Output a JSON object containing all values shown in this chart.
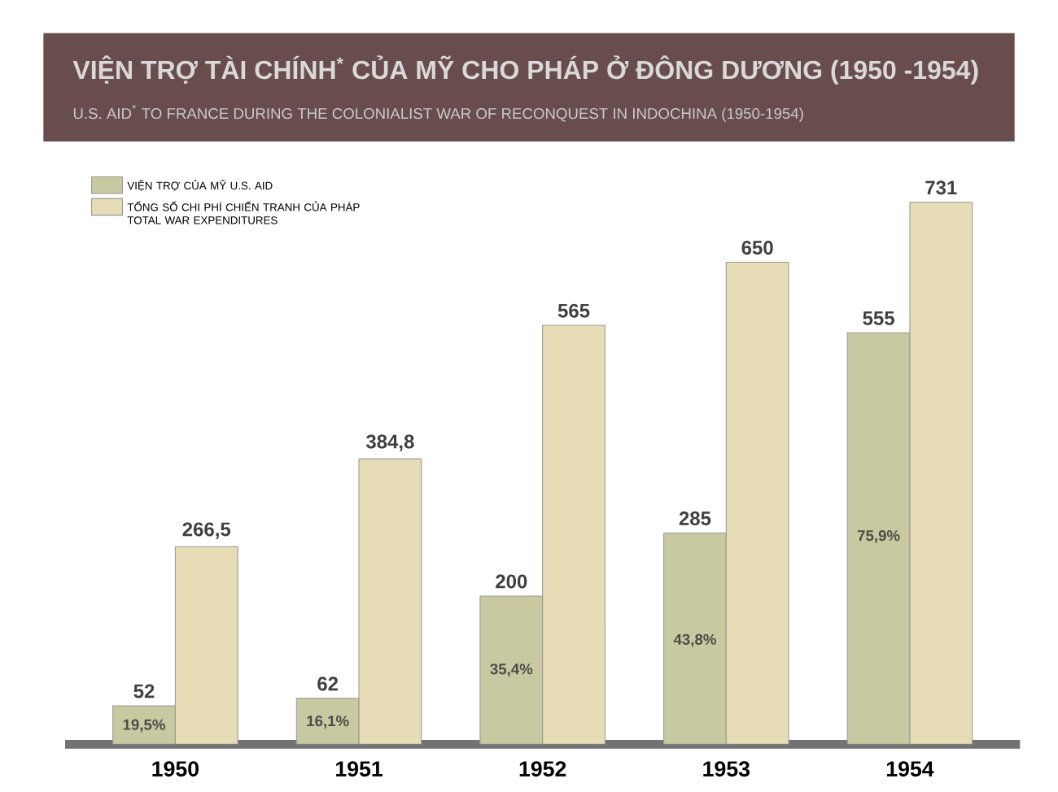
{
  "chart_data": {
    "type": "bar",
    "title": "VIỆN TRỢ TÀI CHÍNH$^{*}$ CỦA MỸ CHO PHÁP Ở ĐÔNG DƯƠNG  (1950 -1954)",
    "subtitle": "U.S. AID$^{*}$ TO FRANCE DURING THE COLONIALIST WAR OF RECONQUEST IN INDOCHINA (1950-1954)",
    "categories": [
      "1950",
      "1951",
      "1952",
      "1953",
      "1954"
    ],
    "series": [
      {
        "name": "VIỆN TRỢ CỦA MỸ U.S. AID",
        "color": "#c8c9a0",
        "values": [
          52,
          62,
          200,
          285,
          555
        ],
        "value_labels": [
          "52",
          "62",
          "200",
          "285",
          "555"
        ]
      },
      {
        "name": "TỔNG SỐ CHI PHÍ CHIẾN TRANH CỦA PHÁP TOTAL WAR EXPENDITURES",
        "color": "#e6dcb6",
        "values": [
          266.5,
          384.8,
          565,
          650,
          731
        ],
        "value_labels": [
          "266,5",
          "384,8",
          "565",
          "650",
          "731"
        ]
      }
    ],
    "annotations": [
      {
        "text": "19,5%",
        "x": "1950",
        "y": 25
      },
      {
        "text": "16,1%",
        "x": "1951",
        "y": 30
      },
      {
        "text": "35,4%",
        "x": "1952",
        "y": 100
      },
      {
        "text": "43,8%",
        "x": "1953",
        "y": 140
      },
      {
        "text": "75,9%",
        "x": "1954",
        "y": 280
      }
    ],
    "legend": "top left"
  }
}
